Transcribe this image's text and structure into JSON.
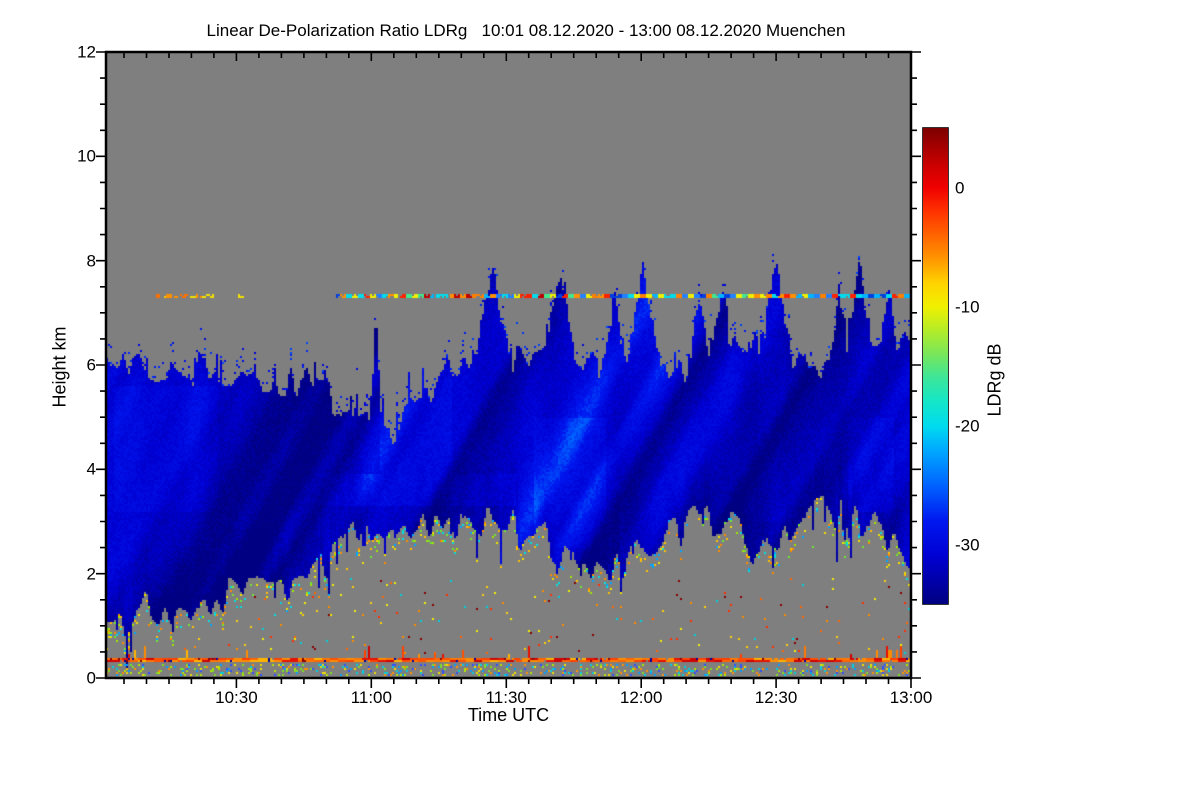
{
  "window": {
    "background": "#ffffff"
  },
  "chart_data": {
    "type": "heatmap",
    "title": "Linear De-Polarization Ratio LDRg   10:01 08.12.2020 - 13:00 08.12.2020 Muenchen",
    "xlabel": "Time UTC",
    "ylabel": "Height km",
    "colorbar_label": "LDRg dB",
    "time_range_min": [
      1,
      180
    ],
    "height_range_km": [
      0,
      12
    ],
    "value_range_db": [
      -35,
      5
    ],
    "x_ticks": [
      {
        "t": 30,
        "label": "10:30"
      },
      {
        "t": 60,
        "label": "11:00"
      },
      {
        "t": 90,
        "label": "11:30"
      },
      {
        "t": 120,
        "label": "12:00"
      },
      {
        "t": 150,
        "label": "12:30"
      },
      {
        "t": 180,
        "label": "13:00"
      }
    ],
    "x_minor_step_min": 5,
    "y_ticks": [
      {
        "km": 0,
        "label": "0"
      },
      {
        "km": 2,
        "label": "2"
      },
      {
        "km": 4,
        "label": "4"
      },
      {
        "km": 6,
        "label": "6"
      },
      {
        "km": 8,
        "label": "8"
      },
      {
        "km": 10,
        "label": "10"
      },
      {
        "km": 12,
        "label": "12"
      }
    ],
    "y_minor_step_km": 0.5,
    "colorbar_ticks": [
      {
        "db": 0,
        "label": "0"
      },
      {
        "db": -10,
        "label": "-10"
      },
      {
        "db": -20,
        "label": "-20"
      },
      {
        "db": -30,
        "label": "-30"
      }
    ],
    "colorbar_minor_step_db": 1,
    "no_data_color": "#7f7f7f",
    "colormap": [
      [
        -35,
        "#000082"
      ],
      [
        -31,
        "#0000D2"
      ],
      [
        -28,
        "#0018F0"
      ],
      [
        -25,
        "#0064FF"
      ],
      [
        -22,
        "#00AAFF"
      ],
      [
        -20,
        "#00DCEE"
      ],
      [
        -18,
        "#14E6C8"
      ],
      [
        -16,
        "#3CE69A"
      ],
      [
        -14,
        "#78E65A"
      ],
      [
        -12,
        "#B4EC28"
      ],
      [
        -10,
        "#F0F000"
      ],
      [
        -8,
        "#FFD200"
      ],
      [
        -6,
        "#FF9600"
      ],
      [
        -4,
        "#FF6400"
      ],
      [
        -2,
        "#FF3200"
      ],
      [
        0,
        "#F00000"
      ],
      [
        2,
        "#C80000"
      ],
      [
        4,
        "#960000"
      ],
      [
        5,
        "#7D0000"
      ]
    ],
    "cloud_top_profile": [
      [
        1,
        6.0
      ],
      [
        5,
        6.15
      ],
      [
        10,
        5.85
      ],
      [
        15,
        6.1
      ],
      [
        20,
        5.9
      ],
      [
        25,
        6.0
      ],
      [
        30,
        5.8
      ],
      [
        35,
        5.75
      ],
      [
        40,
        5.7
      ],
      [
        45,
        5.65
      ],
      [
        48,
        5.5
      ],
      [
        52,
        5.3
      ],
      [
        56,
        4.7
      ],
      [
        60,
        4.9
      ],
      [
        63,
        4.6
      ],
      [
        67,
        4.9
      ],
      [
        71,
        5.3
      ],
      [
        75,
        5.8
      ],
      [
        80,
        6.1
      ],
      [
        85,
        6.3
      ],
      [
        90,
        6.1
      ],
      [
        95,
        6.0
      ],
      [
        100,
        6.3
      ],
      [
        105,
        6.0
      ],
      [
        110,
        6.1
      ],
      [
        115,
        6.0
      ],
      [
        120,
        6.3
      ],
      [
        125,
        6.1
      ],
      [
        130,
        6.0
      ],
      [
        135,
        6.2
      ],
      [
        140,
        6.2
      ],
      [
        145,
        6.3
      ],
      [
        150,
        6.5
      ],
      [
        155,
        6.1
      ],
      [
        160,
        6.0
      ],
      [
        165,
        6.4
      ],
      [
        170,
        6.5
      ],
      [
        175,
        6.3
      ],
      [
        180,
        6.3
      ]
    ],
    "cloud_base_profile": [
      [
        1,
        0.9
      ],
      [
        5,
        1.1
      ],
      [
        10,
        1.4
      ],
      [
        15,
        1.25
      ],
      [
        20,
        1.5
      ],
      [
        25,
        1.45
      ],
      [
        30,
        1.6
      ],
      [
        35,
        1.8
      ],
      [
        40,
        1.75
      ],
      [
        45,
        2.0
      ],
      [
        50,
        2.3
      ],
      [
        55,
        2.6
      ],
      [
        60,
        2.9
      ],
      [
        65,
        3.0
      ],
      [
        70,
        3.05
      ],
      [
        75,
        3.1
      ],
      [
        80,
        3.0
      ],
      [
        85,
        2.9
      ],
      [
        90,
        2.85
      ],
      [
        95,
        2.85
      ],
      [
        100,
        2.5
      ],
      [
        105,
        2.3
      ],
      [
        110,
        2.2
      ],
      [
        115,
        2.15
      ],
      [
        120,
        2.3
      ],
      [
        125,
        2.55
      ],
      [
        130,
        2.95
      ],
      [
        135,
        3.15
      ],
      [
        140,
        3.0
      ],
      [
        144,
        2.6
      ],
      [
        148,
        2.35
      ],
      [
        152,
        2.6
      ],
      [
        156,
        3.25
      ],
      [
        160,
        3.2
      ],
      [
        165,
        3.1
      ],
      [
        170,
        3.0
      ],
      [
        175,
        2.7
      ],
      [
        180,
        2.35
      ]
    ],
    "plumes": [
      [
        61,
        1.5,
        7.0
      ],
      [
        87,
        4,
        7.9
      ],
      [
        102,
        4,
        8.0
      ],
      [
        114,
        2.5,
        7.5
      ],
      [
        120.5,
        3.5,
        8.1
      ],
      [
        133,
        2.5,
        7.5
      ],
      [
        138,
        2.5,
        7.7
      ],
      [
        150,
        3.5,
        8.05
      ],
      [
        164,
        2,
        7.5
      ],
      [
        168.5,
        3,
        8.1
      ],
      [
        175,
        2.5,
        7.4
      ]
    ],
    "bright_regions": [
      {
        "t0": 3,
        "t1": 26,
        "h0": 3.2,
        "h1": 5.6,
        "boost": 1.5
      },
      {
        "t0": 50,
        "t1": 92,
        "h0": 3.3,
        "h1": 3.9,
        "boost": 2.5
      },
      {
        "t0": 62,
        "t1": 78,
        "h0": 3.9,
        "h1": 6.0,
        "boost": 2.0
      },
      {
        "t0": 96,
        "t1": 112,
        "h0": 2.5,
        "h1": 5.0,
        "boost": 1.5
      },
      {
        "t0": 146,
        "t1": 152,
        "h0": 3.0,
        "h1": 6.5,
        "boost": 1.5
      },
      {
        "t0": 166,
        "t1": 176,
        "h0": 3.2,
        "h1": 5.0,
        "boost": 2.0
      }
    ],
    "bright_band": {
      "height_km": [
        7.3,
        7.36
      ],
      "segments": [
        {
          "t0": 12,
          "t1": 25,
          "density": 0.55,
          "palette": "warm"
        },
        {
          "t0": 30,
          "t1": 32,
          "density": 0.6,
          "palette": "warm"
        },
        {
          "t0": 52,
          "t1": 96,
          "density": 0.8,
          "palette": "mixed"
        },
        {
          "t0": 96,
          "t1": 180,
          "density": 0.92,
          "palette": "mixed"
        }
      ],
      "palettes": {
        "warm": [
          "#FF9000",
          "#F0E000",
          "#FF5000",
          "#C80000",
          "#FFC800",
          "#FF7000"
        ],
        "mixed": [
          "#00DCEE",
          "#00DCEE",
          "#40E890",
          "#F0F000",
          "#F0F000",
          "#FF9000",
          "#FF8000",
          "#FF2000",
          "#C00000",
          "#2080FF",
          "#00B4FF",
          "#0040E0"
        ]
      }
    },
    "surface_line": {
      "height_km": [
        0.3,
        0.4
      ],
      "density": 0.96,
      "colors": [
        "#FF4000",
        "#FF6400",
        "#FF8C00",
        "#E81000",
        "#FFB400",
        "#D00000",
        "#FF5000",
        "#FF7800"
      ],
      "rare_colors": [
        "#8B0000",
        "#0000A0"
      ]
    },
    "near_surface_speckle": {
      "height_km": [
        0.03,
        0.25
      ],
      "density": 0.22,
      "colors": [
        "#F0E000",
        "#80E020",
        "#00D0E0",
        "#3050FF",
        "#FF9000",
        "#00A0FF",
        "#B0E800"
      ]
    },
    "subcloud_speckle": {
      "height_km": [
        0.45,
        1.9
      ],
      "density": 0.013,
      "colors": [
        "#FF8C00",
        "#FFD000",
        "#FF3000",
        "#8B0000",
        "#F0F000",
        "#FF6400",
        "#00D0E0"
      ]
    },
    "cloud_base_fringe": {
      "depth_km": 0.35,
      "density": 0.13,
      "colors": [
        "#F0E000",
        "#A0E800",
        "#00E0E0",
        "#FF8C00",
        "#70E830",
        "#00A8FF",
        "#FFC000"
      ]
    },
    "seed": 7
  }
}
